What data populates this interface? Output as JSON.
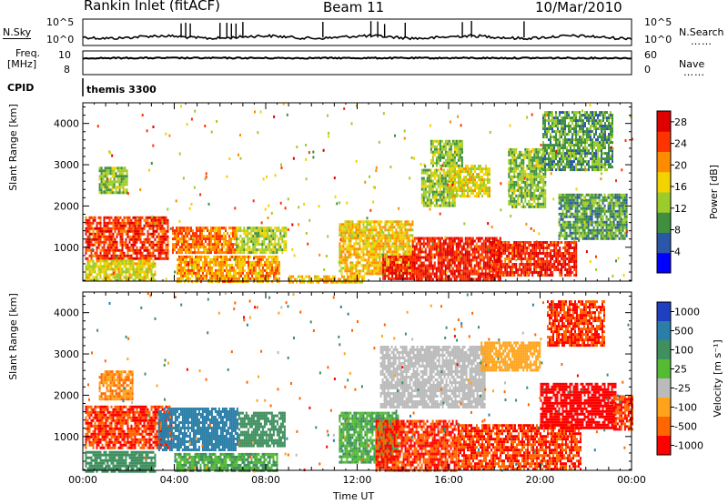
{
  "header": {
    "title": "Rankin Inlet (fitACF)",
    "beam": "Beam 11",
    "date": "10/Mar/2010"
  },
  "strip_labels": {
    "nsky": "N.Sky",
    "nsearch": "N.Search",
    "nsearch_dots": "……",
    "freq": "Freq.",
    "freq_unit": "[MHz]",
    "nave": "Nave",
    "nave_dots": "……",
    "cpid": "CPID",
    "cpid_value": "themis 3300",
    "ns_left_top": "10^5",
    "ns_left_bot": "10^0",
    "ns_right_top": "10^5",
    "ns_right_bot": "10^0",
    "freq_left_top": "10",
    "freq_left_bot": "8",
    "nave_right_top": "60",
    "nave_right_bot": "0"
  },
  "chart_data": [
    {
      "type": "heatmap",
      "title": "Power",
      "xlabel": "Time UT",
      "ylabel": "Slant Range [km]",
      "x_ticks": [
        "00:00",
        "04:00",
        "08:00",
        "12:00",
        "16:00",
        "20:00",
        "00:00"
      ],
      "xlim_hours": [
        0,
        24
      ],
      "ylim": [
        180,
        4500
      ],
      "y_ticks": [
        1000,
        2000,
        3000,
        4000
      ],
      "colorbar": {
        "label": "Power [dB]",
        "ticks": [
          4,
          8,
          12,
          16,
          20,
          24,
          28
        ],
        "range": [
          0,
          30
        ],
        "colors": [
          "#0000ff",
          "#2a57a8",
          "#3f8f3f",
          "#9ccc2a",
          "#f2d200",
          "#ff8c00",
          "#ff3300",
          "#e00000"
        ]
      },
      "regions": [
        {
          "t": [
            0.1,
            3.7
          ],
          "r": [
            750,
            1750
          ],
          "v": 25
        },
        {
          "t": [
            0.1,
            3.2
          ],
          "r": [
            180,
            700
          ],
          "v": 16
        },
        {
          "t": [
            3.9,
            6.7
          ],
          "r": [
            900,
            1500
          ],
          "v": 22
        },
        {
          "t": [
            4.1,
            8.6
          ],
          "r": [
            200,
            800
          ],
          "v": 20
        },
        {
          "t": [
            6.7,
            8.9
          ],
          "r": [
            900,
            1500
          ],
          "v": 14
        },
        {
          "t": [
            0.7,
            1.9
          ],
          "r": [
            2300,
            2950
          ],
          "v": 12
        },
        {
          "t": [
            11.2,
            14.4
          ],
          "r": [
            350,
            1650
          ],
          "v": 18
        },
        {
          "t": [
            13.1,
            14.5
          ],
          "r": [
            250,
            800
          ],
          "v": 27
        },
        {
          "t": [
            14.4,
            18.3
          ],
          "r": [
            200,
            1250
          ],
          "v": 26
        },
        {
          "t": [
            17.8,
            21.6
          ],
          "r": [
            350,
            1150
          ],
          "v": 26
        },
        {
          "t": [
            20.8,
            23.8
          ],
          "r": [
            1200,
            2300
          ],
          "v": 10
        },
        {
          "t": [
            14.8,
            16.3
          ],
          "r": [
            2000,
            2900
          ],
          "v": 13
        },
        {
          "t": [
            16.0,
            17.8
          ],
          "r": [
            2250,
            3000
          ],
          "v": 16
        },
        {
          "t": [
            15.2,
            16.6
          ],
          "r": [
            3000,
            3600
          ],
          "v": 12
        },
        {
          "t": [
            18.6,
            20.2
          ],
          "r": [
            2000,
            3400
          ],
          "v": 12
        },
        {
          "t": [
            20.1,
            23.2
          ],
          "r": [
            2900,
            4300
          ],
          "v": 10
        },
        {
          "t": [
            9.0,
            12.3
          ],
          "r": [
            180,
            320
          ],
          "v": 18
        }
      ]
    },
    {
      "type": "heatmap",
      "title": "Velocity",
      "xlabel": "Time UT",
      "ylabel": "Slant Range [km]",
      "x_ticks": [
        "00:00",
        "04:00",
        "08:00",
        "12:00",
        "16:00",
        "20:00",
        "00:00"
      ],
      "xlim_hours": [
        0,
        24
      ],
      "ylim": [
        180,
        4500
      ],
      "y_ticks": [
        1000,
        2000,
        3000,
        4000
      ],
      "colorbar": {
        "label": "Velocity [m s⁻¹]",
        "ticks": [
          "1000",
          "500",
          "100",
          "25",
          "-25",
          "-100",
          "-500",
          "-1000"
        ],
        "colors": [
          "#1f3fbf",
          "#2a7fa8",
          "#3f8f5f",
          "#55bb33",
          "#bbbbbb",
          "#ffa31a",
          "#ff6600",
          "#ff0000"
        ]
      },
      "regions": [
        {
          "t": [
            0.1,
            3.9
          ],
          "r": [
            700,
            1750
          ],
          "v": -500
        },
        {
          "t": [
            0.1,
            3.2
          ],
          "r": [
            180,
            650
          ],
          "v": 300
        },
        {
          "t": [
            3.3,
            6.8
          ],
          "r": [
            650,
            1700
          ],
          "v": 700
        },
        {
          "t": [
            6.8,
            8.8
          ],
          "r": [
            800,
            1600
          ],
          "v": 300
        },
        {
          "t": [
            4.0,
            8.5
          ],
          "r": [
            180,
            600
          ],
          "v": 100
        },
        {
          "t": [
            0.7,
            2.2
          ],
          "r": [
            1900,
            2600
          ],
          "v": -100
        },
        {
          "t": [
            11.2,
            13.8
          ],
          "r": [
            400,
            1600
          ],
          "v": 100
        },
        {
          "t": [
            12.8,
            16.4
          ],
          "r": [
            200,
            1400
          ],
          "v": -500
        },
        {
          "t": [
            16.4,
            21.8
          ],
          "r": [
            200,
            1300
          ],
          "v": -500
        },
        {
          "t": [
            20.0,
            23.3
          ],
          "r": [
            1200,
            2300
          ],
          "v": -1000
        },
        {
          "t": [
            13.0,
            17.6
          ],
          "r": [
            1700,
            3200
          ],
          "v": 0
        },
        {
          "t": [
            17.4,
            20.0
          ],
          "r": [
            2600,
            3300
          ],
          "v": -40
        },
        {
          "t": [
            20.3,
            22.8
          ],
          "r": [
            3200,
            4300
          ],
          "v": -500
        },
        {
          "t": [
            23.2,
            24.0
          ],
          "r": [
            1200,
            2000
          ],
          "v": -500
        }
      ]
    }
  ],
  "strip_traces": {
    "nsky_baseline": 0.3,
    "nsky_spikes_hours": [
      4.3,
      4.5,
      4.7,
      6.0,
      6.3,
      6.5,
      6.7,
      7.0,
      10.5,
      12.6,
      12.9,
      13.2,
      14.1,
      16.6,
      17.0,
      19.3
    ],
    "nsearch_level": 0.55,
    "freq_level": 0.7,
    "nave_level": 0.6
  }
}
